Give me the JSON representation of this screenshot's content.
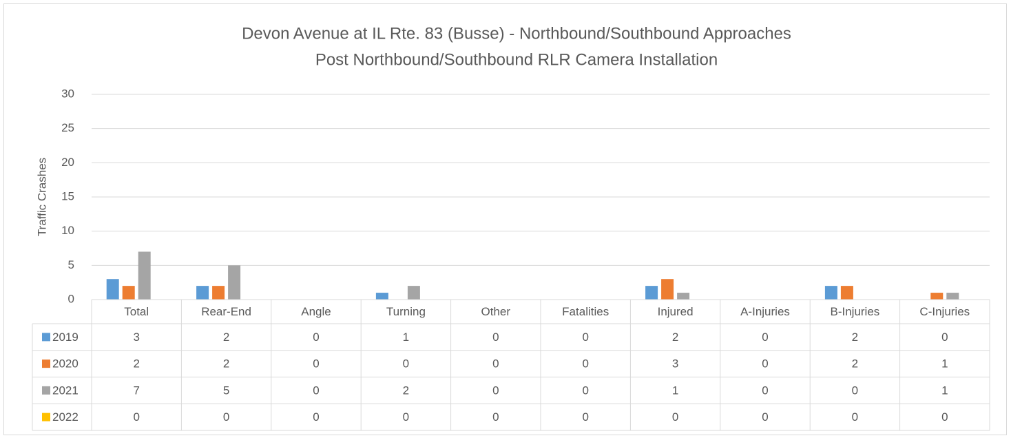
{
  "chart_data": {
    "type": "bar",
    "title": "Devon Avenue at IL Rte. 83 (Busse) - Northbound/Southbound Approaches",
    "subtitle": "Post Northbound/Southbound RLR Camera Installation",
    "y_label": "Traffic Crashes",
    "categories": [
      "Total",
      "Rear-End",
      "Angle",
      "Turning",
      "Other",
      "Fatalities",
      "Injured",
      "A-Injuries",
      "B-Injuries",
      "C-Injuries"
    ],
    "series": [
      {
        "name": "2019",
        "color": "#5b9bd5",
        "values": [
          3,
          2,
          0,
          1,
          0,
          0,
          2,
          0,
          2,
          0
        ]
      },
      {
        "name": "2020",
        "color": "#ed7d31",
        "values": [
          2,
          2,
          0,
          0,
          0,
          0,
          3,
          0,
          2,
          1
        ]
      },
      {
        "name": "2021",
        "color": "#a5a5a5",
        "values": [
          7,
          5,
          0,
          2,
          0,
          0,
          1,
          0,
          0,
          1
        ]
      },
      {
        "name": "2022",
        "color": "#ffc000",
        "values": [
          0,
          0,
          0,
          0,
          0,
          0,
          0,
          0,
          0,
          0
        ]
      }
    ],
    "ylim": [
      0,
      30
    ],
    "yticks": [
      0,
      5,
      10,
      15,
      20,
      25,
      30
    ],
    "grid": true,
    "data_table": true
  }
}
